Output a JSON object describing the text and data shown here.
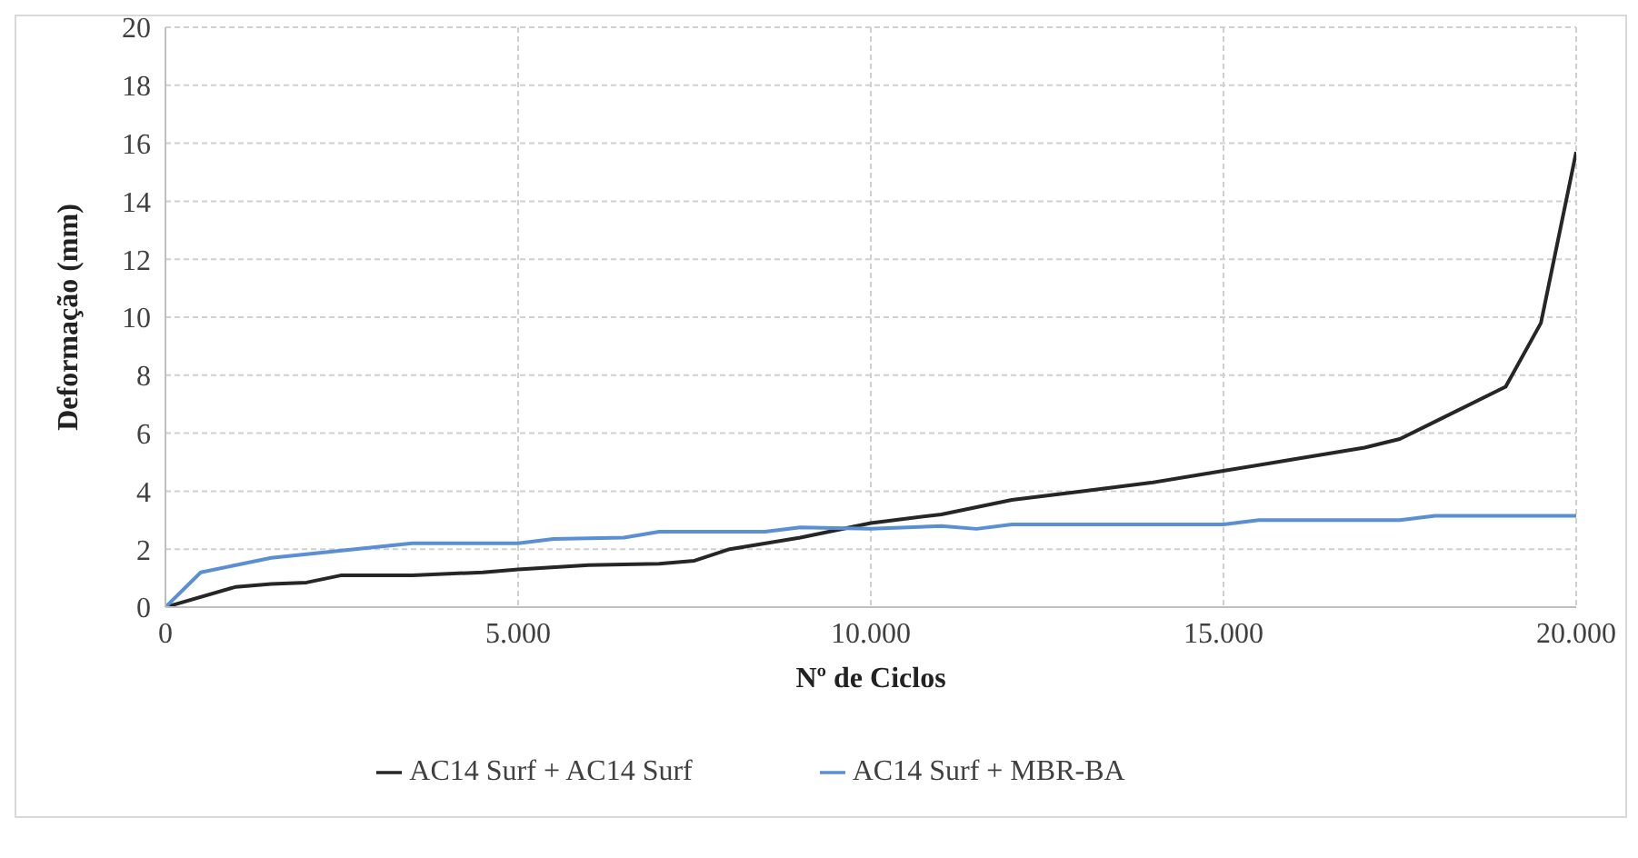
{
  "chart_data": {
    "type": "line",
    "xlabel": "Nº de Ciclos",
    "ylabel": "Deformação (mm)",
    "xlim": [
      0,
      20000
    ],
    "xticks": [
      0,
      {
        "value": 5000,
        "label": "5.000"
      },
      {
        "value": 10000,
        "label": "10.000"
      },
      {
        "value": 15000,
        "label": "15.000"
      },
      {
        "value": 20000,
        "label": "20.000"
      }
    ],
    "ylim": [
      0,
      20
    ],
    "yticks": [
      0,
      2,
      4,
      6,
      8,
      10,
      12,
      14,
      16,
      18,
      20
    ],
    "grid": true,
    "legend": "bottom",
    "marker": "none",
    "line_style": "solid",
    "series": [
      {
        "name": "AC14 Surf + AC14 Surf",
        "color": "#262626",
        "x": [
          0,
          1000,
          1500,
          2000,
          2500,
          3500,
          4500,
          5000,
          6000,
          7000,
          7500,
          8000,
          9000,
          10000,
          11000,
          12000,
          13000,
          14000,
          15000,
          16000,
          17000,
          17500,
          18000,
          19000,
          19500,
          20000
        ],
        "values": [
          0,
          0.7,
          0.8,
          0.85,
          1.1,
          1.1,
          1.2,
          1.3,
          1.45,
          1.5,
          1.6,
          2.0,
          2.4,
          2.9,
          3.2,
          3.7,
          4.0,
          4.3,
          4.7,
          5.1,
          5.5,
          5.8,
          6.4,
          7.6,
          9.8,
          15.7
        ]
      },
      {
        "name": "AC14 Surf + MBR-BA",
        "color": "#5b8fd4",
        "x": [
          0,
          500,
          1000,
          1500,
          2500,
          3500,
          5000,
          5500,
          6500,
          7000,
          8500,
          9000,
          10000,
          11000,
          11500,
          12000,
          15000,
          15500,
          17500,
          18000,
          20000
        ],
        "values": [
          0,
          1.2,
          1.45,
          1.7,
          1.95,
          2.2,
          2.2,
          2.35,
          2.4,
          2.6,
          2.6,
          2.75,
          2.7,
          2.8,
          2.7,
          2.85,
          2.85,
          3.0,
          3.0,
          3.15,
          3.15
        ]
      }
    ]
  }
}
